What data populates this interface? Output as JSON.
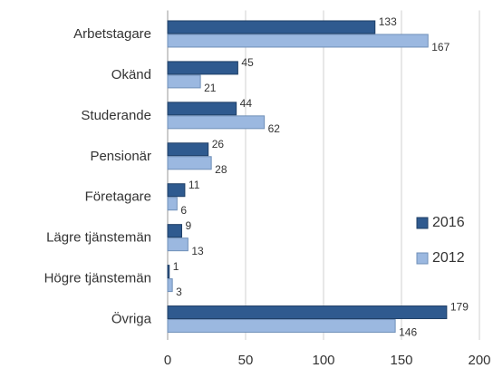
{
  "chart_data": {
    "type": "bar",
    "orientation": "horizontal",
    "categories": [
      "Arbetstagare",
      "Okänd",
      "Studerande",
      "Pensionär",
      "Företagare",
      "Lägre tjänstemän",
      "Högre tjänstemän",
      "Övriga"
    ],
    "series": [
      {
        "name": "2016",
        "color": "#2f5a8f",
        "values": [
          133,
          45,
          44,
          26,
          11,
          9,
          1,
          179
        ]
      },
      {
        "name": "2012",
        "color": "#9bb8e0",
        "values": [
          167,
          21,
          62,
          28,
          6,
          13,
          3,
          146
        ]
      }
    ],
    "xlim": [
      0,
      200
    ],
    "xticks": [
      0,
      50,
      100,
      150,
      200
    ],
    "grid": true,
    "legend": "right"
  }
}
